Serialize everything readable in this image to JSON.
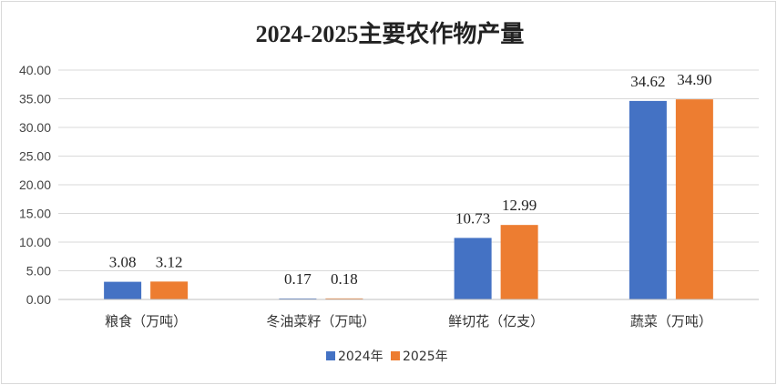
{
  "chart_data": {
    "type": "bar",
    "title": "2024-2025主要农作物产量",
    "categories": [
      "粮食（万吨）",
      "冬油菜籽（万吨）",
      "鲜切花（亿支）",
      "蔬菜（万吨）"
    ],
    "series": [
      {
        "name": "2024年",
        "color": "#4472c4",
        "values": [
          3.08,
          0.17,
          10.73,
          34.62
        ],
        "labels": [
          "3.08",
          "0.17",
          "10.73",
          "34.62"
        ]
      },
      {
        "name": "2025年",
        "color": "#ed7d31",
        "values": [
          3.12,
          0.18,
          12.99,
          34.9
        ],
        "labels": [
          "3.12",
          "0.18",
          "12.99",
          "34.90"
        ]
      }
    ],
    "yticks": [
      "0.00",
      "5.00",
      "10.00",
      "15.00",
      "20.00",
      "25.00",
      "30.00",
      "35.00",
      "40.00"
    ],
    "ylim": [
      0,
      40
    ],
    "grid": true,
    "legend_position": "bottom"
  }
}
